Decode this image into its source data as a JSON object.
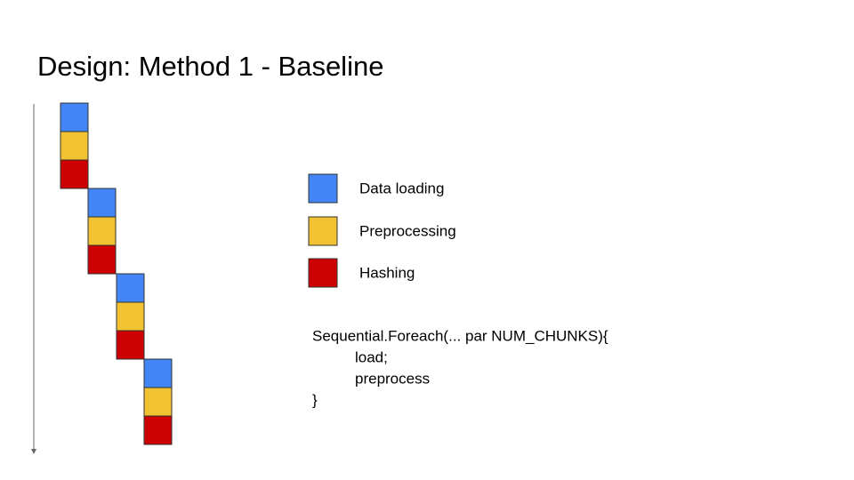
{
  "title": "Design: Method 1 - Baseline",
  "legend": [
    {
      "label": "Data loading"
    },
    {
      "label": "Preprocessing"
    },
    {
      "label": "Hashing"
    }
  ],
  "code": [
    "Sequential.Foreach(... par NUM_CHUNKS){",
    "load;",
    "preprocess",
    "}"
  ]
}
